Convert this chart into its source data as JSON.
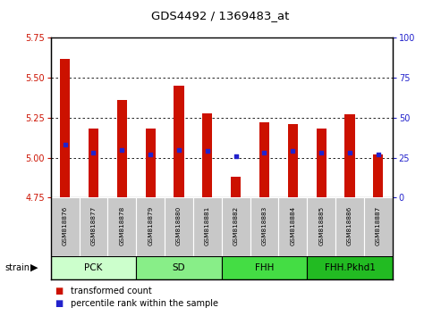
{
  "title": "GDS4492 / 1369483_at",
  "samples": [
    "GSM818876",
    "GSM818877",
    "GSM818878",
    "GSM818879",
    "GSM818880",
    "GSM818881",
    "GSM818882",
    "GSM818883",
    "GSM818884",
    "GSM818885",
    "GSM818886",
    "GSM818887"
  ],
  "transformed_count": [
    5.62,
    5.18,
    5.36,
    5.18,
    5.45,
    5.28,
    4.88,
    5.22,
    5.21,
    5.18,
    5.27,
    5.02
  ],
  "percentile_rank": [
    33,
    28,
    30,
    27,
    30,
    29,
    26,
    28,
    29,
    28,
    28,
    27
  ],
  "bar_bottom": 4.75,
  "ylim_left": [
    4.75,
    5.75
  ],
  "ylim_right": [
    0,
    100
  ],
  "yticks_left": [
    4.75,
    5.0,
    5.25,
    5.5,
    5.75
  ],
  "yticks_right": [
    0,
    25,
    50,
    75,
    100
  ],
  "groups": [
    {
      "label": "PCK",
      "start": 0,
      "end": 3,
      "color": "#ccffcc"
    },
    {
      "label": "SD",
      "start": 3,
      "end": 6,
      "color": "#88ee88"
    },
    {
      "label": "FHH",
      "start": 6,
      "end": 9,
      "color": "#44dd44"
    },
    {
      "label": "FHH.Pkhd1",
      "start": 9,
      "end": 12,
      "color": "#22bb22"
    }
  ],
  "bar_color": "#cc1100",
  "dot_color": "#2222cc",
  "tick_label_color_left": "#cc1100",
  "tick_label_color_right": "#2222cc",
  "sample_box_color": "#c8c8c8",
  "strain_label": "strain",
  "legend_items": [
    "transformed count",
    "percentile rank within the sample"
  ],
  "legend_colors": [
    "#cc1100",
    "#2222cc"
  ],
  "grid_yticks": [
    5.0,
    5.25,
    5.5
  ]
}
